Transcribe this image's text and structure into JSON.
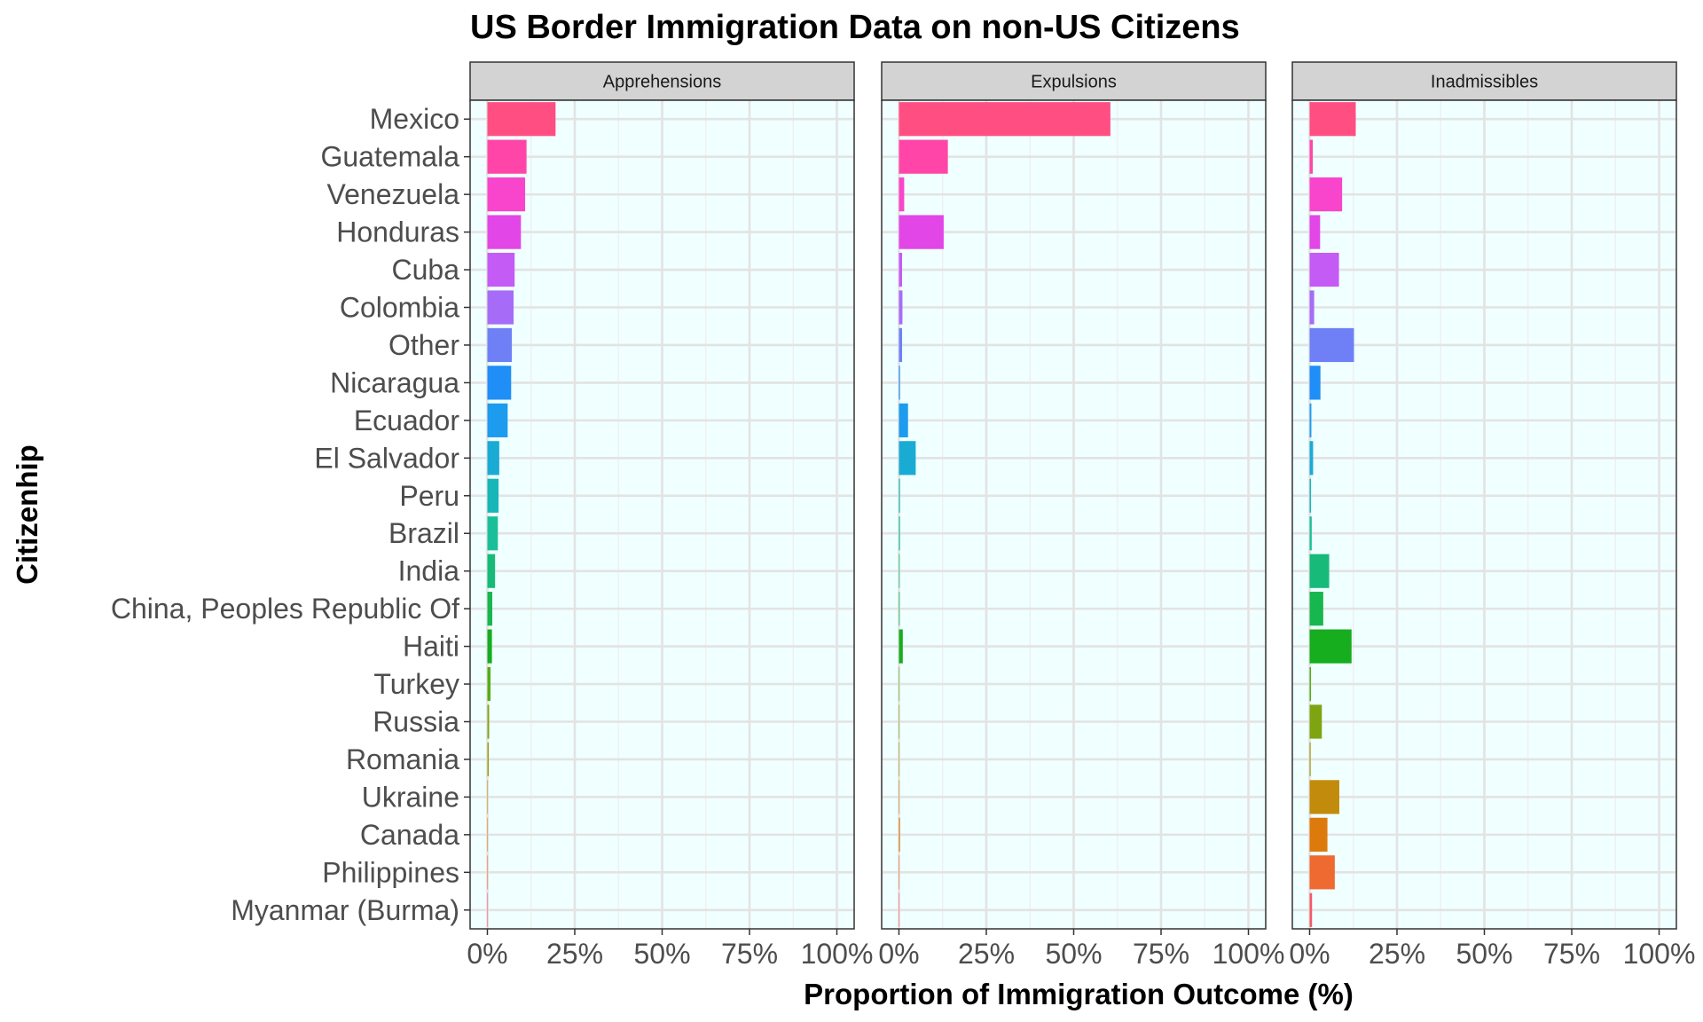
{
  "chart_data": {
    "type": "bar",
    "orientation": "horizontal",
    "title": "US Border Immigration Data on non-US Citizens",
    "xlabel": "Proportion of Immigration Outcome (%)",
    "ylabel": "Citizenhip",
    "xlim": [
      0,
      100
    ],
    "x_ticks": [
      "0%",
      "25%",
      "50%",
      "75%",
      "100%"
    ],
    "grid": true,
    "panel_background": "#f0ffff",
    "categories": [
      "Mexico",
      "Guatemala",
      "Venezuela",
      "Honduras",
      "Cuba",
      "Colombia",
      "Other",
      "Nicaragua",
      "Ecuador",
      "El Salvador",
      "Peru",
      "Brazil",
      "India",
      "China, Peoples Republic Of",
      "Haiti",
      "Turkey",
      "Russia",
      "Romania",
      "Ukraine",
      "Canada",
      "Philippines",
      "Myanmar (Burma)"
    ],
    "colors": [
      "#ff4f82",
      "#ff46a8",
      "#f845cc",
      "#e246e6",
      "#c55bf5",
      "#a66cf8",
      "#6f80f6",
      "#1f8ef6",
      "#1c9bef",
      "#1aabd5",
      "#17b6b8",
      "#1abf9a",
      "#17ba79",
      "#18b64e",
      "#16ad1e",
      "#57ad14",
      "#7fa412",
      "#a39a10",
      "#c38b0c",
      "#dd7a0c",
      "#ee6a30",
      "#f6586a"
    ],
    "facets": [
      {
        "name": "Apprehensions",
        "values": [
          19.5,
          11.2,
          10.8,
          9.6,
          7.8,
          7.5,
          7.0,
          6.8,
          5.8,
          3.4,
          3.2,
          3.0,
          2.2,
          1.4,
          1.3,
          0.9,
          0.5,
          0.4,
          0.1,
          0.1,
          0.1,
          0.05
        ]
      },
      {
        "name": "Expulsions",
        "values": [
          60.5,
          14.0,
          1.5,
          12.8,
          0.9,
          1.0,
          0.9,
          0.3,
          2.6,
          4.8,
          0.3,
          0.3,
          0.2,
          0.2,
          1.1,
          0.1,
          0.1,
          0.1,
          0.1,
          0.3,
          0.1,
          0.1
        ]
      },
      {
        "name": "Inadmissibles",
        "values": [
          13.2,
          0.9,
          9.3,
          3.0,
          8.4,
          1.3,
          12.7,
          3.1,
          0.5,
          1.0,
          0.4,
          0.6,
          5.6,
          3.9,
          12.0,
          0.4,
          3.5,
          0.3,
          8.5,
          5.1,
          7.2,
          0.7
        ]
      }
    ]
  }
}
